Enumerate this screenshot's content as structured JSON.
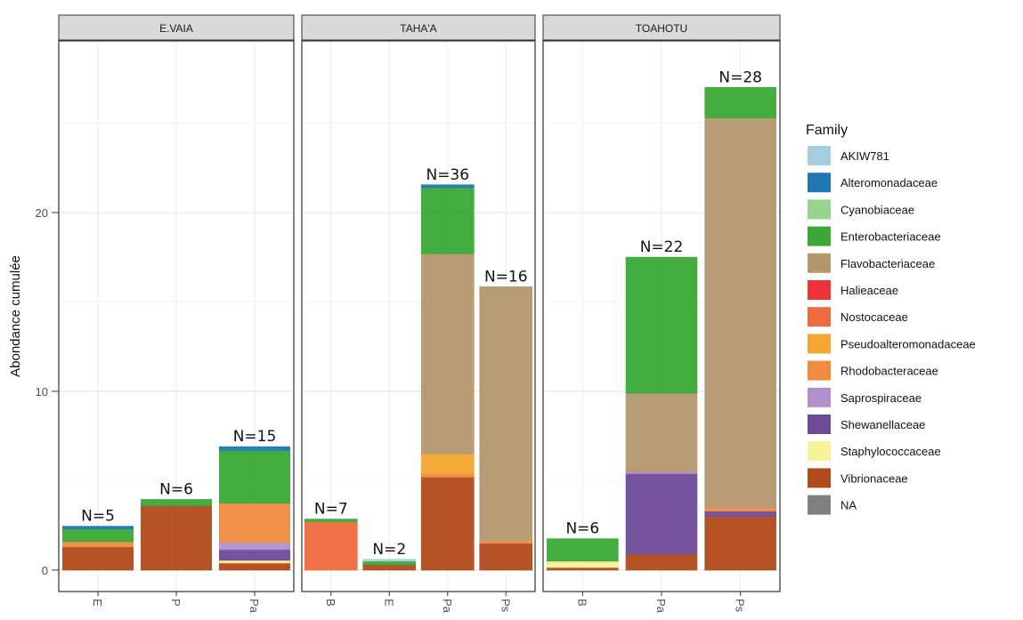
{
  "chart_data": {
    "type": "bar",
    "stacked": true,
    "ylabel": "Abondance cumulée",
    "xlabel": "",
    "ylim": [
      -1.2,
      29.6
    ],
    "yticks": [
      0,
      10,
      20
    ],
    "grid": true,
    "legend": {
      "title": "Family",
      "position": "right",
      "entries": [
        {
          "name": "AKIW781",
          "color": "#a6cee3"
        },
        {
          "name": "Alteromonadaceae",
          "color": "#1f78b4"
        },
        {
          "name": "Cyanobiaceae",
          "color": "#98d48c"
        },
        {
          "name": "Enterobacteriaceae",
          "color": "#3aa935"
        },
        {
          "name": "Flavobacteriaceae",
          "color": "#b5976e"
        },
        {
          "name": "Halieaceae",
          "color": "#ee3338"
        },
        {
          "name": "Nostocaceae",
          "color": "#f06a3f"
        },
        {
          "name": "Pseudoalteromonadaceae",
          "color": "#f5a630"
        },
        {
          "name": "Rhodobacteraceae",
          "color": "#f08c40"
        },
        {
          "name": "Saprospiraceae",
          "color": "#b28fcd"
        },
        {
          "name": "Shewanellaceae",
          "color": "#6f4a99"
        },
        {
          "name": "Staphylococcaceae",
          "color": "#f7f296"
        },
        {
          "name": "Vibrionaceae",
          "color": "#b24a1c"
        },
        {
          "name": "NA",
          "color": "#808080"
        }
      ]
    },
    "panels": [
      {
        "title": "E.VAIA",
        "bars": [
          {
            "category": "E",
            "n_label": "N=5",
            "segments": [
              {
                "family": "Vibrionaceae",
                "value": 1.3
              },
              {
                "family": "Rhodobacteraceae",
                "value": 0.3
              },
              {
                "family": "Enterobacteriaceae",
                "value": 0.7
              },
              {
                "family": "Alteromonadaceae",
                "value": 0.15
              }
            ]
          },
          {
            "category": "P",
            "n_label": "N=6",
            "segments": [
              {
                "family": "Vibrionaceae",
                "value": 3.6
              },
              {
                "family": "Enterobacteriaceae",
                "value": 0.35
              }
            ]
          },
          {
            "category": "Pa",
            "n_label": "N=15",
            "segments": [
              {
                "family": "Vibrionaceae",
                "value": 0.4
              },
              {
                "family": "Staphylococcaceae",
                "value": 0.15
              },
              {
                "family": "Shewanellaceae",
                "value": 0.6
              },
              {
                "family": "Saprospiraceae",
                "value": 0.4
              },
              {
                "family": "Rhodobacteraceae",
                "value": 2.2
              },
              {
                "family": "Enterobacteriaceae",
                "value": 2.95
              },
              {
                "family": "Alteromonadaceae",
                "value": 0.2
              }
            ]
          }
        ]
      },
      {
        "title": "TAHA'A",
        "bars": [
          {
            "category": "B",
            "n_label": "N=7",
            "segments": [
              {
                "family": "Nostocaceae",
                "value": 2.7
              },
              {
                "family": "Enterobacteriaceae",
                "value": 0.15
              }
            ]
          },
          {
            "category": "E",
            "n_label": "N=2",
            "segments": [
              {
                "family": "Vibrionaceae",
                "value": 0.3
              },
              {
                "family": "Enterobacteriaceae",
                "value": 0.2
              },
              {
                "family": "AKIW781",
                "value": 0.1
              }
            ]
          },
          {
            "category": "Pa",
            "n_label": "N=36",
            "segments": [
              {
                "family": "Vibrionaceae",
                "value": 5.2
              },
              {
                "family": "Rhodobacteraceae",
                "value": 0.2
              },
              {
                "family": "Pseudoalteromonadaceae",
                "value": 1.1
              },
              {
                "family": "Flavobacteriaceae",
                "value": 11.2
              },
              {
                "family": "Enterobacteriaceae",
                "value": 3.7
              },
              {
                "family": "Alteromonadaceae",
                "value": 0.15
              }
            ]
          },
          {
            "category": "Ps",
            "n_label": "N=16",
            "segments": [
              {
                "family": "Vibrionaceae",
                "value": 1.5
              },
              {
                "family": "Rhodobacteraceae",
                "value": 0.15
              },
              {
                "family": "Flavobacteriaceae",
                "value": 14.2
              }
            ]
          }
        ]
      },
      {
        "title": "TOAHOTU",
        "bars": [
          {
            "category": "B",
            "n_label": "N=6",
            "segments": [
              {
                "family": "Vibrionaceae",
                "value": 0.15
              },
              {
                "family": "Staphylococcaceae",
                "value": 0.35
              },
              {
                "family": "Enterobacteriaceae",
                "value": 1.25
              }
            ]
          },
          {
            "category": "Pa",
            "n_label": "N=22",
            "segments": [
              {
                "family": "Vibrionaceae",
                "value": 0.9
              },
              {
                "family": "Shewanellaceae",
                "value": 4.5
              },
              {
                "family": "Saprospiraceae",
                "value": 0.1
              },
              {
                "family": "Flavobacteriaceae",
                "value": 4.4
              },
              {
                "family": "Enterobacteriaceae",
                "value": 7.6
              }
            ]
          },
          {
            "category": "Ps",
            "n_label": "N=28",
            "segments": [
              {
                "family": "Vibrionaceae",
                "value": 3.0
              },
              {
                "family": "Shewanellaceae",
                "value": 0.3
              },
              {
                "family": "Rhodobacteraceae",
                "value": 0.2
              },
              {
                "family": "Flavobacteriaceae",
                "value": 21.8
              },
              {
                "family": "Enterobacteriaceae",
                "value": 1.7
              }
            ]
          }
        ]
      }
    ]
  }
}
